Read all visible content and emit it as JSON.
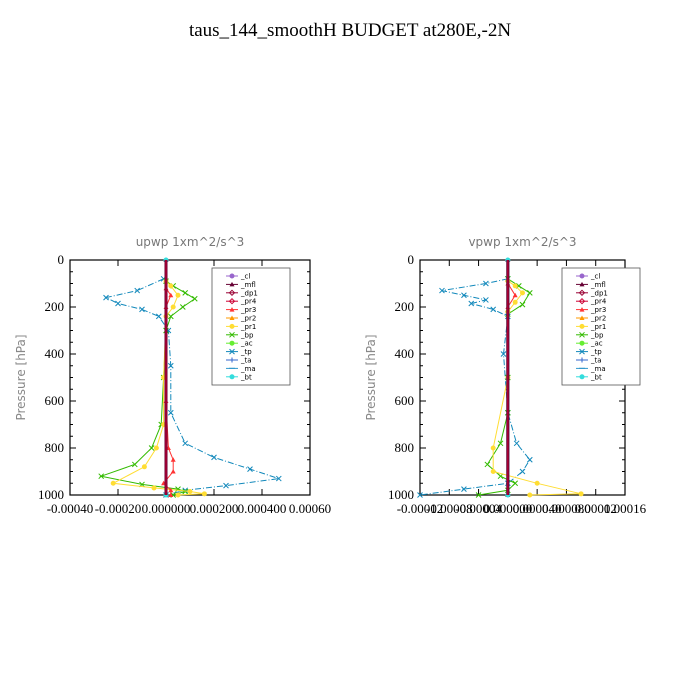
{
  "title": "taus_144_smoothH  BUDGET at280E,-2N",
  "legend_entries": [
    {
      "name": "_cl",
      "color": "#9966cc",
      "marker": "circle"
    },
    {
      "name": "_mfl",
      "color": "#660033",
      "marker": "triangle"
    },
    {
      "name": "_dp1",
      "color": "#990033",
      "marker": "diamond"
    },
    {
      "name": "_pr4",
      "color": "#cc0033",
      "marker": "diamond"
    },
    {
      "name": "_pr3",
      "color": "#ff3333",
      "marker": "triangle"
    },
    {
      "name": "_pr2",
      "color": "#ff9900",
      "marker": "triangle"
    },
    {
      "name": "_pr1",
      "color": "#ffdd33",
      "marker": "circle"
    },
    {
      "name": "_bp",
      "color": "#33bb00",
      "marker": "x"
    },
    {
      "name": "_ac",
      "color": "#66ee33",
      "marker": "circle"
    },
    {
      "name": "_tp",
      "color": "#1188bb",
      "marker": "x"
    },
    {
      "name": "_ta",
      "color": "#3366cc",
      "marker": "plus"
    },
    {
      "name": "_ma",
      "color": "#3399cc",
      "marker": "dash"
    },
    {
      "name": "_bt",
      "color": "#33dddd",
      "marker": "circle"
    }
  ],
  "chart_data": [
    {
      "type": "line",
      "title": "upwp   1xm^2/s^3",
      "xlabel": "",
      "ylabel": "Pressure [hPa]",
      "xlim": [
        -0.0004,
        0.0006
      ],
      "ylim": [
        1000,
        0
      ],
      "xticks": [
        "-0.00040",
        "-0.00020",
        "0.000000",
        "0.000200",
        "0.000400",
        "0.00060"
      ],
      "yticks": [
        "0",
        "200",
        "400",
        "600",
        "800",
        "1000"
      ],
      "xtick_values": [
        -0.0004,
        -0.0002,
        0,
        0.0002,
        0.0004,
        0.0006
      ],
      "ytick_values": [
        0,
        200,
        400,
        600,
        800,
        1000
      ],
      "legend_placement": "top-right",
      "series": [
        {
          "name": "_tp",
          "color": "#1188bb",
          "values": [
            [
              -1e-05,
              80
            ],
            [
              -0.00012,
              130
            ],
            [
              -0.00025,
              160
            ],
            [
              -0.0002,
              185
            ],
            [
              -0.0001,
              210
            ],
            [
              -3e-05,
              240
            ],
            [
              1e-05,
              300
            ],
            [
              2e-05,
              450
            ],
            [
              2e-05,
              650
            ],
            [
              8e-05,
              780
            ],
            [
              0.0002,
              840
            ],
            [
              0.00035,
              890
            ],
            [
              0.00047,
              930
            ],
            [
              0.00025,
              960
            ],
            [
              8e-05,
              980
            ],
            [
              0,
              1000
            ]
          ]
        },
        {
          "name": "_bp",
          "color": "#33bb00",
          "values": [
            [
              0,
              90
            ],
            [
              3e-05,
              110
            ],
            [
              8e-05,
              140
            ],
            [
              0.00012,
              165
            ],
            [
              7e-05,
              200
            ],
            [
              2e-05,
              240
            ],
            [
              0,
              300
            ],
            [
              -1e-05,
              500
            ],
            [
              -2e-05,
              700
            ],
            [
              -6e-05,
              800
            ],
            [
              -0.00013,
              870
            ],
            [
              -0.00027,
              920
            ],
            [
              -0.0001,
              955
            ],
            [
              5e-05,
              975
            ],
            [
              8e-05,
              985
            ],
            [
              3e-05,
              1000
            ]
          ]
        },
        {
          "name": "_pr1",
          "color": "#ffdd33",
          "values": [
            [
              0,
              90
            ],
            [
              2e-05,
              110
            ],
            [
              5e-05,
              150
            ],
            [
              3e-05,
              200
            ],
            [
              0,
              240
            ],
            [
              -1e-05,
              500
            ],
            [
              -1e-05,
              700
            ],
            [
              -4e-05,
              800
            ],
            [
              -9e-05,
              880
            ],
            [
              -0.00022,
              950
            ],
            [
              -5e-05,
              970
            ],
            [
              0.0001,
              985
            ],
            [
              0.00016,
              995
            ],
            [
              5e-05,
              1000
            ]
          ]
        },
        {
          "name": "_pr3",
          "color": "#ff3333",
          "values": [
            [
              0,
              120
            ],
            [
              2e-05,
              150
            ],
            [
              0,
              200
            ],
            [
              0,
              600
            ],
            [
              1e-05,
              800
            ],
            [
              3e-05,
              850
            ],
            [
              3e-05,
              900
            ],
            [
              -1e-05,
              950
            ],
            [
              2e-05,
              980
            ],
            [
              2e-05,
              1000
            ]
          ]
        },
        {
          "name": "_mfl",
          "color": "#660033",
          "values": [
            [
              0,
              0
            ],
            [
              0,
              1000
            ]
          ]
        },
        {
          "name": "_bt",
          "color": "#33dddd",
          "values": [
            [
              0,
              0
            ],
            [
              0,
              1000
            ]
          ]
        }
      ]
    },
    {
      "type": "line",
      "title": "vpwp   1xm^2/s^3",
      "xlabel": "",
      "ylabel": "Pressure [hPa]",
      "xlim": [
        -0.00012,
        0.00016
      ],
      "ylim": [
        1000,
        0
      ],
      "xticks": [
        "-0.00012",
        "-0.00008",
        "-0.00004",
        "0.000000",
        "0.000040",
        "0.000080",
        "0.00012",
        "0.00016"
      ],
      "yticks": [
        "0",
        "200",
        "400",
        "600",
        "800",
        "1000"
      ],
      "xtick_values": [
        -0.00012,
        -8e-05,
        -4e-05,
        0,
        4e-05,
        8e-05,
        0.00012,
        0.00016
      ],
      "ytick_values": [
        0,
        200,
        400,
        600,
        800,
        1000
      ],
      "legend_placement": "top-right",
      "series": [
        {
          "name": "_tp",
          "color": "#1188bb",
          "values": [
            [
              0,
              80
            ],
            [
              -3e-05,
              100
            ],
            [
              -9e-05,
              130
            ],
            [
              -6e-05,
              150
            ],
            [
              -3e-05,
              170
            ],
            [
              -5e-05,
              185
            ],
            [
              -2e-05,
              210
            ],
            [
              0,
              240
            ],
            [
              -6e-06,
              400
            ],
            [
              0,
              650
            ],
            [
              1.2e-05,
              780
            ],
            [
              3e-05,
              850
            ],
            [
              2e-05,
              900
            ],
            [
              0,
              950
            ],
            [
              -6e-05,
              975
            ],
            [
              -0.00012,
              1000
            ]
          ]
        },
        {
          "name": "_bp",
          "color": "#33bb00",
          "values": [
            [
              0,
              80
            ],
            [
              1.5e-05,
              110
            ],
            [
              3e-05,
              140
            ],
            [
              2e-05,
              190
            ],
            [
              0,
              230
            ],
            [
              0,
              500
            ],
            [
              0,
              650
            ],
            [
              -1e-05,
              780
            ],
            [
              -2.8e-05,
              870
            ],
            [
              -1e-05,
              920
            ],
            [
              1e-05,
              950
            ],
            [
              0,
              980
            ],
            [
              -4e-05,
              1000
            ]
          ]
        },
        {
          "name": "_pr1",
          "color": "#ffdd33",
          "values": [
            [
              0,
              90
            ],
            [
              1e-05,
              110
            ],
            [
              2e-05,
              140
            ],
            [
              1e-05,
              180
            ],
            [
              0,
              220
            ],
            [
              0,
              500
            ],
            [
              -2e-05,
              800
            ],
            [
              -2e-05,
              900
            ],
            [
              4e-05,
              950
            ],
            [
              0.0001,
              995
            ],
            [
              3e-05,
              1000
            ]
          ]
        },
        {
          "name": "_pr3",
          "color": "#ff3333",
          "values": [
            [
              0,
              100
            ],
            [
              1e-05,
              150
            ],
            [
              0,
              200
            ],
            [
              0,
              1000
            ]
          ]
        },
        {
          "name": "_mfl",
          "color": "#660033",
          "values": [
            [
              0,
              0
            ],
            [
              0,
              1000
            ]
          ]
        },
        {
          "name": "_bt",
          "color": "#33dddd",
          "values": [
            [
              0,
              0
            ],
            [
              0,
              1000
            ]
          ]
        }
      ]
    }
  ]
}
